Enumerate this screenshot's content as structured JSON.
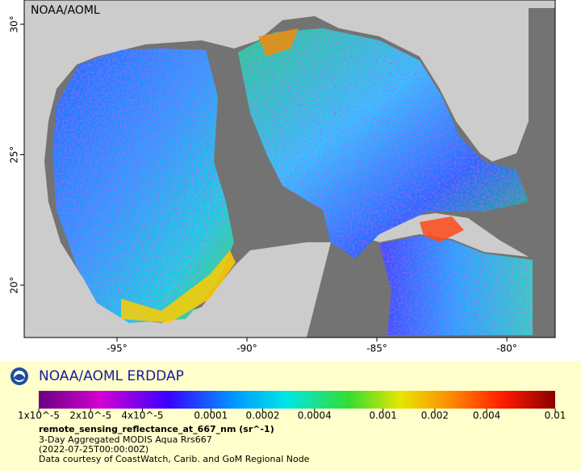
{
  "map": {
    "watermark": "NOAA/AOML",
    "xlim": [
      -98.57,
      -78.14
    ],
    "ylim": [
      17.99,
      30.93
    ],
    "xticks": [
      {
        "value": -95,
        "label": "-95°"
      },
      {
        "value": -90,
        "label": "-90°"
      },
      {
        "value": -85,
        "label": "-85°"
      },
      {
        "value": -80,
        "label": "-80°"
      }
    ],
    "yticks": [
      {
        "value": 30,
        "label": "30°"
      },
      {
        "value": 25,
        "label": "25°"
      },
      {
        "value": 20,
        "label": "20°"
      }
    ]
  },
  "legend": {
    "title": "NOAA/AOML ERDDAP",
    "colorbar": {
      "scale": "log",
      "lim": [
        1e-05,
        0.01
      ],
      "ticks": [
        {
          "value": 1e-05,
          "label": "1x10^-5"
        },
        {
          "value": 2e-05,
          "label": "2x10^-5"
        },
        {
          "value": 4e-05,
          "label": "4x10^-5"
        },
        0.0001,
        0.0002,
        0.0004,
        0.001,
        0.002,
        0.004,
        0.01
      ]
    },
    "variable": "remote_sensing_reflectance_at_667_nm (sr^-1)",
    "lines": [
      "3-Day Aggregated MODIS Aqua Rrs667",
      "(2022-07-25T00:00:00Z)",
      "Data courtesy of CoastWatch, Carib. and GoM Regional Node"
    ]
  }
}
